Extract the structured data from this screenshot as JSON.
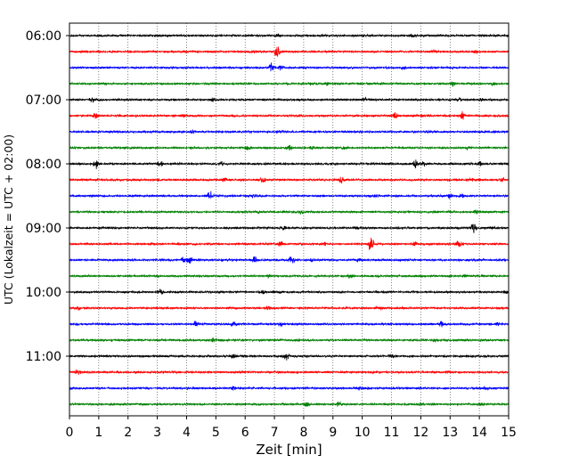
{
  "chart_data": {
    "type": "line",
    "title": "",
    "xlabel": "Zeit  [min]",
    "ylabel": "UTC (Lokalzeit = UTC + 02:00)",
    "xlim": [
      0,
      15
    ],
    "xticks": [
      0,
      1,
      2,
      3,
      4,
      5,
      6,
      7,
      8,
      9,
      10,
      11,
      12,
      13,
      14,
      15
    ],
    "yticks": [
      "06:00",
      "07:00",
      "08:00",
      "09:00",
      "10:00",
      "11:00"
    ],
    "grid": "vertical dotted at every minute",
    "colors": [
      "#000000",
      "#ff0000",
      "#0000ff",
      "#008000"
    ],
    "series": [
      {
        "start": "06:00",
        "color": "#000000",
        "events": [
          [
            7.1,
            0.3
          ],
          [
            11.7,
            0.25
          ],
          [
            14.2,
            0.2
          ]
        ]
      },
      {
        "start": "06:15",
        "color": "#ff0000",
        "events": [
          [
            7.1,
            1.0
          ],
          [
            6.3,
            0.3
          ],
          [
            12.4,
            0.35
          ],
          [
            13.9,
            0.3
          ]
        ]
      },
      {
        "start": "06:30",
        "color": "#0000ff",
        "events": [
          [
            6.9,
            0.8
          ],
          [
            7.2,
            0.4
          ],
          [
            11.4,
            0.3
          ]
        ]
      },
      {
        "start": "06:45",
        "color": "#008000",
        "events": [
          [
            8.2,
            0.3
          ],
          [
            8.8,
            0.3
          ],
          [
            13.1,
            0.55
          ],
          [
            14.5,
            0.25
          ]
        ]
      },
      {
        "start": "07:00",
        "color": "#000000",
        "events": [
          [
            0.8,
            0.45
          ],
          [
            4.9,
            0.5
          ],
          [
            10.1,
            0.4
          ],
          [
            13.3,
            0.35
          ],
          [
            14.1,
            0.3
          ]
        ]
      },
      {
        "start": "07:15",
        "color": "#ff0000",
        "events": [
          [
            0.9,
            0.5
          ],
          [
            11.1,
            0.75
          ],
          [
            13.4,
            0.8
          ],
          [
            3.9,
            0.25
          ]
        ]
      },
      {
        "start": "07:30",
        "color": "#0000ff",
        "events": [
          [
            4.2,
            0.45
          ],
          [
            7.1,
            0.25
          ],
          [
            12.3,
            0.25
          ]
        ]
      },
      {
        "start": "07:45",
        "color": "#008000",
        "events": [
          [
            6.1,
            0.35
          ],
          [
            7.5,
            0.6
          ],
          [
            8.3,
            0.35
          ],
          [
            9.4,
            0.45
          ],
          [
            13.6,
            0.3
          ]
        ]
      },
      {
        "start": "08:00",
        "color": "#000000",
        "events": [
          [
            0.9,
            0.8
          ],
          [
            3.1,
            0.5
          ],
          [
            5.2,
            0.3
          ],
          [
            11.8,
            0.75
          ],
          [
            12.1,
            0.4
          ],
          [
            14.0,
            0.55
          ]
        ]
      },
      {
        "start": "08:15",
        "color": "#ff0000",
        "events": [
          [
            5.3,
            0.5
          ],
          [
            6.6,
            0.45
          ],
          [
            9.3,
            0.65
          ],
          [
            13.7,
            0.4
          ],
          [
            14.8,
            0.35
          ]
        ]
      },
      {
        "start": "08:30",
        "color": "#0000ff",
        "events": [
          [
            4.8,
            0.75
          ],
          [
            6.3,
            0.35
          ],
          [
            10.5,
            0.3
          ],
          [
            13.0,
            0.6
          ],
          [
            13.4,
            0.35
          ]
        ]
      },
      {
        "start": "08:45",
        "color": "#008000",
        "events": [
          [
            6.4,
            0.3
          ],
          [
            7.9,
            0.45
          ],
          [
            13.9,
            0.3
          ]
        ]
      },
      {
        "start": "09:00",
        "color": "#000000",
        "events": [
          [
            7.3,
            0.3
          ],
          [
            9.8,
            0.25
          ],
          [
            13.8,
            0.8
          ],
          [
            14.4,
            0.3
          ]
        ]
      },
      {
        "start": "09:15",
        "color": "#ff0000",
        "events": [
          [
            7.2,
            0.55
          ],
          [
            8.7,
            0.35
          ],
          [
            10.3,
            1.6
          ],
          [
            11.8,
            0.35
          ],
          [
            13.3,
            0.65
          ]
        ]
      },
      {
        "start": "09:30",
        "color": "#0000ff",
        "events": [
          [
            3.9,
            0.45
          ],
          [
            4.1,
            0.6
          ],
          [
            6.3,
            0.8
          ],
          [
            7.6,
            0.85
          ],
          [
            8.3,
            0.35
          ],
          [
            9.9,
            0.3
          ]
        ]
      },
      {
        "start": "09:45",
        "color": "#008000",
        "events": [
          [
            6.8,
            0.35
          ],
          [
            9.6,
            0.35
          ],
          [
            13.5,
            0.3
          ]
        ]
      },
      {
        "start": "10:00",
        "color": "#000000",
        "events": [
          [
            3.1,
            0.5
          ],
          [
            6.6,
            0.25
          ],
          [
            14.9,
            0.3
          ]
        ]
      },
      {
        "start": "10:15",
        "color": "#ff0000",
        "events": [
          [
            0.3,
            0.4
          ],
          [
            6.8,
            0.3
          ],
          [
            10.6,
            0.25
          ]
        ]
      },
      {
        "start": "10:30",
        "color": "#0000ff",
        "events": [
          [
            4.3,
            0.6
          ],
          [
            5.6,
            0.45
          ],
          [
            7.2,
            0.3
          ],
          [
            12.7,
            0.4
          ],
          [
            14.6,
            0.3
          ]
        ]
      },
      {
        "start": "10:45",
        "color": "#008000",
        "events": [
          [
            4.9,
            0.55
          ],
          [
            7.8,
            0.3
          ],
          [
            12.5,
            0.3
          ]
        ]
      },
      {
        "start": "11:00",
        "color": "#000000",
        "events": [
          [
            5.6,
            0.35
          ],
          [
            7.4,
            0.7
          ],
          [
            11.0,
            0.3
          ]
        ]
      },
      {
        "start": "11:15",
        "color": "#ff0000",
        "events": [
          [
            0.3,
            0.65
          ],
          [
            7.1,
            0.25
          ],
          [
            12.9,
            0.25
          ]
        ]
      },
      {
        "start": "11:30",
        "color": "#0000ff",
        "events": [
          [
            5.6,
            0.35
          ],
          [
            9.9,
            0.3
          ],
          [
            14.2,
            0.3
          ]
        ]
      },
      {
        "start": "11:45",
        "color": "#008000",
        "events": [
          [
            8.1,
            0.5
          ],
          [
            9.2,
            0.55
          ],
          [
            12.0,
            0.35
          ],
          [
            14.1,
            0.3
          ]
        ]
      }
    ]
  }
}
